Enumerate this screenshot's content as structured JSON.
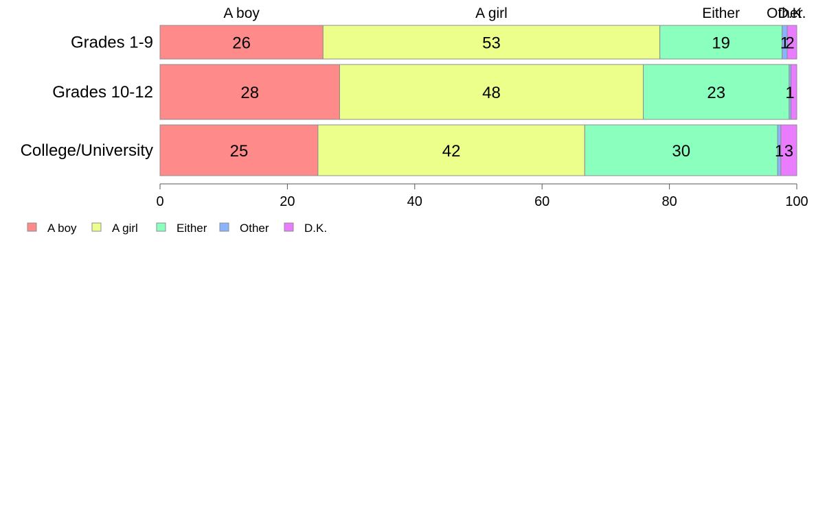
{
  "chart_data": {
    "type": "bar",
    "orientation": "horizontal",
    "stacked": true,
    "categories": [
      "Grades 1-9",
      "Grades 10-12",
      "College/University"
    ],
    "series": [
      {
        "name": "A boy",
        "color": "#ff8a8a",
        "values": [
          25.6,
          28.2,
          24.8
        ]
      },
      {
        "name": "A girl",
        "color": "#ecff8a",
        "values": [
          52.9,
          47.7,
          41.9
        ]
      },
      {
        "name": "Either",
        "color": "#8affbe",
        "values": [
          19.2,
          22.9,
          30.3
        ]
      },
      {
        "name": "Other",
        "color": "#8ab4ff",
        "values": [
          0.8,
          0.3,
          0.5
        ]
      },
      {
        "name": "D.K.",
        "color": "#ea7dff",
        "values": [
          1.5,
          0.9,
          2.5
        ]
      }
    ],
    "data_labels": [
      [
        "26",
        "53",
        "19",
        "1",
        "2"
      ],
      [
        "28",
        "48",
        "23",
        "",
        "1"
      ],
      [
        "25",
        "42",
        "30",
        "1",
        "3"
      ]
    ],
    "top_labels": [
      "A boy",
      "A girl",
      "Either",
      "Other",
      "D.K."
    ],
    "x_ticks": [
      "0",
      "20",
      "40",
      "60",
      "80",
      "100"
    ],
    "xlim": [
      0,
      100
    ],
    "grid": false,
    "legend": {
      "placement": "bottom-left",
      "entries": [
        "A boy",
        "A girl",
        "Either",
        "Other",
        "D.K."
      ]
    }
  }
}
